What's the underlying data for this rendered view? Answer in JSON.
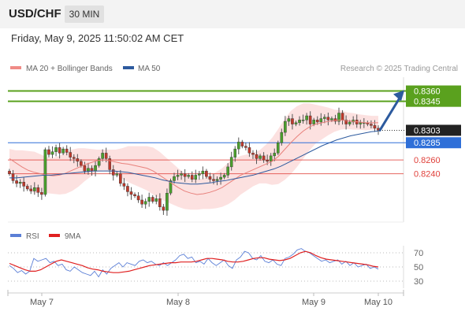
{
  "header": {
    "symbol": "USD/CHF",
    "timeframe": "30 MIN",
    "datetime": "Friday, May 9, 2025 11:50:02 AM CET"
  },
  "legend": {
    "items": [
      {
        "label": "MA 20 + Bollinger Bands",
        "color": "#f08b86"
      },
      {
        "label": "MA 50",
        "color": "#2d5a9e"
      }
    ],
    "source": "Research © 2025 Trading Central"
  },
  "rsi_legend": {
    "items": [
      {
        "label": "RSI",
        "color": "#5b7fd6"
      },
      {
        "label": "9MA",
        "color": "#e02020"
      }
    ]
  },
  "chart_data": [
    {
      "type": "candlestick",
      "title": "USD/CHF 30 MIN",
      "ylim": [
        0.817,
        0.838
      ],
      "x_ticks": [
        "May 7",
        "May 8",
        "May 9",
        "May 10"
      ],
      "last_price": 0.8303,
      "levels": [
        {
          "value": 0.836,
          "kind": "target",
          "color": "#5aa11e"
        },
        {
          "value": 0.8345,
          "kind": "target",
          "color": "#5aa11e"
        },
        {
          "value": 0.8303,
          "kind": "last",
          "color": "#222222"
        },
        {
          "value": 0.8285,
          "kind": "pivot",
          "color": "#2f6fd8"
        },
        {
          "value": 0.826,
          "kind": "support",
          "color": "#e0403a"
        },
        {
          "value": 0.824,
          "kind": "support",
          "color": "#e0403a"
        }
      ],
      "arrow": {
        "from_price": 0.8303,
        "to_price": 0.836,
        "color": "#2c5a9e"
      },
      "closes": [
        0.824,
        0.823,
        0.8226,
        0.8228,
        0.8222,
        0.8218,
        0.8215,
        0.822,
        0.8213,
        0.821,
        0.8275,
        0.8268,
        0.8272,
        0.8278,
        0.827,
        0.8276,
        0.8271,
        0.8264,
        0.8262,
        0.8258,
        0.8252,
        0.8244,
        0.8248,
        0.8244,
        0.8252,
        0.8262,
        0.827,
        0.8262,
        0.8246,
        0.8238,
        0.824,
        0.8226,
        0.8222,
        0.8214,
        0.821,
        0.8208,
        0.8202,
        0.8196,
        0.82,
        0.8206,
        0.82,
        0.8204,
        0.8192,
        0.8187,
        0.8212,
        0.823,
        0.8236,
        0.8238,
        0.824,
        0.8236,
        0.8238,
        0.8232,
        0.8238,
        0.824,
        0.8244,
        0.8236,
        0.8232,
        0.823,
        0.8232,
        0.8235,
        0.8238,
        0.825,
        0.8264,
        0.8276,
        0.8286,
        0.828,
        0.8278,
        0.827,
        0.8268,
        0.8262,
        0.8266,
        0.826,
        0.8258,
        0.8266,
        0.827,
        0.8285,
        0.83,
        0.8316,
        0.832,
        0.8312,
        0.8314,
        0.8318,
        0.8318,
        0.8324,
        0.8312,
        0.8318,
        0.8315,
        0.832,
        0.8322,
        0.8318,
        0.832,
        0.8316,
        0.8328,
        0.8318,
        0.8312,
        0.8315,
        0.8318,
        0.8312,
        0.8314,
        0.8314,
        0.8312,
        0.831,
        0.8306,
        0.8303
      ],
      "ma20": [
        0.8262,
        0.8256,
        0.825,
        0.8245,
        0.8242,
        0.824,
        0.8238,
        0.8237,
        0.8238,
        0.8241,
        0.8245,
        0.8249,
        0.8253,
        0.8256,
        0.8259,
        0.826,
        0.8259,
        0.8257,
        0.8255,
        0.8254,
        0.8252,
        0.825,
        0.8248,
        0.8244,
        0.8238,
        0.8232,
        0.8226,
        0.822,
        0.8215,
        0.8212,
        0.821,
        0.8211,
        0.8213,
        0.8216,
        0.822,
        0.8226,
        0.8232,
        0.8238,
        0.8242,
        0.8246,
        0.825,
        0.8254,
        0.8258,
        0.8265,
        0.8275,
        0.8285,
        0.8294,
        0.8302,
        0.8308,
        0.8312,
        0.8314,
        0.8316,
        0.8317,
        0.8318,
        0.8317,
        0.8316,
        0.8315,
        0.8314,
        0.8314,
        0.8314
      ],
      "ma50": [
        0.8234,
        0.8234,
        0.8235,
        0.8236,
        0.8237,
        0.8238,
        0.8238,
        0.8239,
        0.824,
        0.8241,
        0.8242,
        0.8243,
        0.8244,
        0.8244,
        0.8244,
        0.8244,
        0.8243,
        0.8242,
        0.824,
        0.8238,
        0.8236,
        0.8234,
        0.8231,
        0.8229,
        0.8227,
        0.8226,
        0.8225,
        0.8225,
        0.8226,
        0.8227,
        0.8229,
        0.823,
        0.8232,
        0.8234,
        0.8236,
        0.8238,
        0.8241,
        0.8244,
        0.8247,
        0.8251,
        0.8256,
        0.8261,
        0.8266,
        0.8271,
        0.8276,
        0.8281,
        0.8285,
        0.8289,
        0.8292,
        0.8295,
        0.8297,
        0.8299,
        0.8301,
        0.8302
      ]
    },
    {
      "type": "line",
      "title": "RSI",
      "ylim": [
        20,
        80
      ],
      "y_ticks": [
        70,
        50,
        30
      ],
      "series": [
        {
          "name": "RSI",
          "color": "#5b7fd6",
          "values": [
            52,
            48,
            42,
            45,
            40,
            44,
            62,
            58,
            60,
            62,
            56,
            58,
            52,
            54,
            46,
            44,
            50,
            46,
            42,
            40,
            38,
            44,
            36,
            46,
            40,
            48,
            52,
            56,
            50,
            56,
            54,
            52,
            58,
            60,
            56,
            58,
            54,
            52,
            56,
            52,
            56,
            60,
            66,
            68,
            62,
            64,
            56,
            58,
            54,
            62,
            56,
            52,
            56,
            60,
            52,
            48,
            60,
            64,
            72,
            70,
            62,
            60,
            66,
            58,
            56,
            60,
            54,
            52,
            62,
            64,
            68,
            74,
            76,
            72,
            70,
            66,
            62,
            58,
            60,
            56,
            58,
            60,
            54,
            58,
            52,
            56,
            50,
            52,
            54,
            48,
            50,
            47
          ]
        },
        {
          "name": "9MA",
          "color": "#e02020",
          "values": [
            55,
            52,
            49,
            46,
            44,
            44,
            46,
            50,
            54,
            58,
            60,
            58,
            56,
            54,
            52,
            49,
            47,
            46,
            44,
            43,
            42,
            42,
            43,
            44,
            46,
            48,
            50,
            52,
            53,
            54,
            55,
            56,
            56,
            57,
            57,
            57,
            58,
            60,
            62,
            62,
            61,
            60,
            58,
            57,
            57,
            58,
            60,
            62,
            63,
            63,
            61,
            60,
            59,
            60,
            62,
            66,
            70,
            72,
            70,
            66,
            63,
            61,
            60,
            59,
            58,
            57,
            56,
            55,
            54,
            53,
            51,
            50
          ]
        }
      ]
    }
  ]
}
